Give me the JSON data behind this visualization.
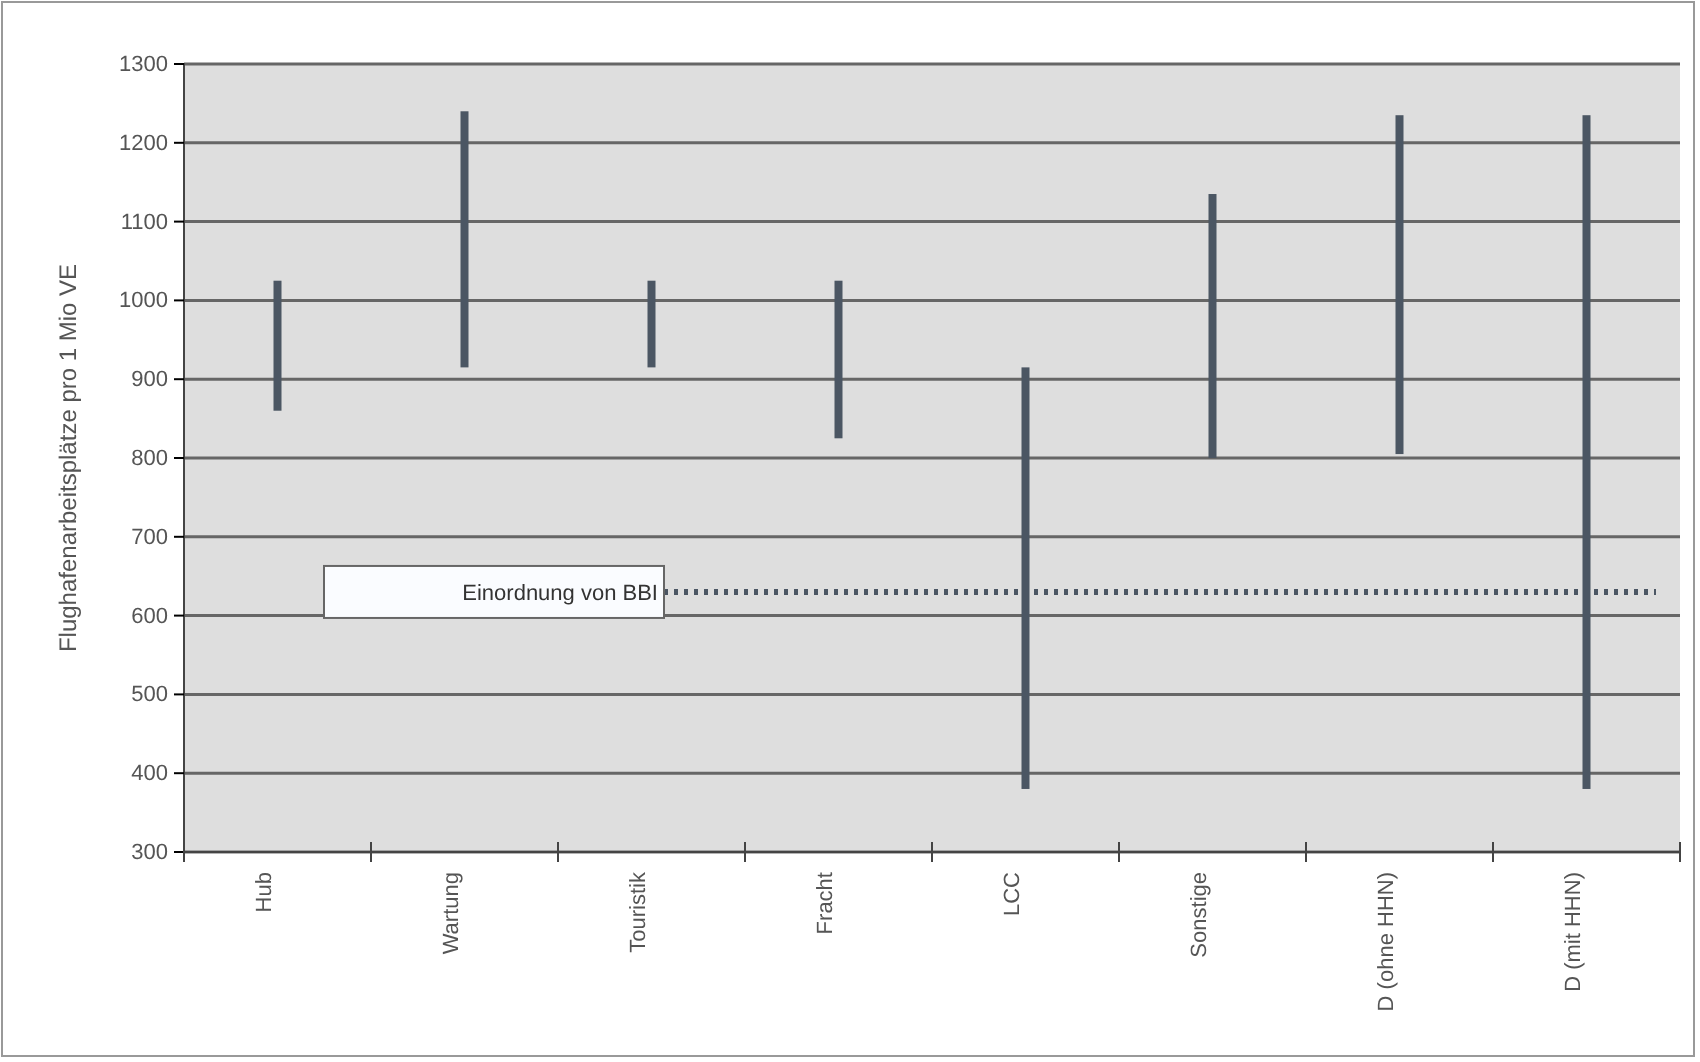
{
  "chart_data": {
    "type": "bar",
    "ylabel": "Flughafenarbeitsplätze pro 1 Mio VE",
    "categories": [
      "Hub",
      "Wartung",
      "Touristik",
      "Fracht",
      "LCC",
      "Sonstige",
      "D (ohne HHN)",
      "D (mit HHN)"
    ],
    "base": [
      860,
      915,
      915,
      825,
      380,
      800,
      805,
      380
    ],
    "values": [
      165,
      325,
      110,
      200,
      535,
      335,
      430,
      855
    ],
    "color": "#4b5663",
    "ylim": [
      300,
      1300
    ],
    "yticks": [
      300,
      400,
      500,
      600,
      700,
      800,
      900,
      1000,
      1100,
      1200,
      1300
    ],
    "grid": "y",
    "ref_lines": [
      {
        "axis": "y",
        "value": 630,
        "label": "Einordnung von BBI",
        "color": "#4b5663",
        "line_style": "dotted"
      }
    ]
  }
}
